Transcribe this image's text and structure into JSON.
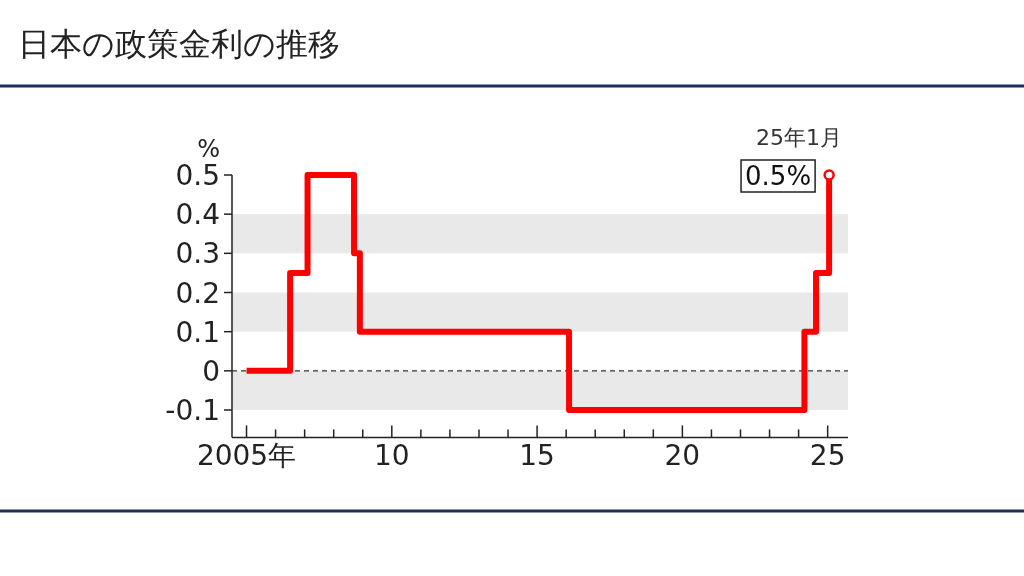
{
  "chart_data": {
    "type": "step",
    "title": "日本の政策金利の推移",
    "ylabel": "%",
    "x": [
      2005.0,
      2006.5,
      2007.1,
      2008.7,
      2008.9,
      2016.1,
      2024.2,
      2024.6,
      2025.05
    ],
    "values": [
      0,
      0.25,
      0.5,
      0.3,
      0.1,
      -0.1,
      0.1,
      0.25,
      0.5
    ],
    "color": "#ff0000",
    "xlim": [
      2004.5,
      2025.7
    ],
    "xticks": [
      {
        "value": 2005,
        "label": "2005年"
      },
      {
        "value": 2006,
        "label": null
      },
      {
        "value": 2007,
        "label": null
      },
      {
        "value": 2008,
        "label": null
      },
      {
        "value": 2009,
        "label": null
      },
      {
        "value": 2010,
        "label": "10"
      },
      {
        "value": 2011,
        "label": null
      },
      {
        "value": 2012,
        "label": null
      },
      {
        "value": 2013,
        "label": null
      },
      {
        "value": 2014,
        "label": null
      },
      {
        "value": 2015,
        "label": "15"
      },
      {
        "value": 2016,
        "label": null
      },
      {
        "value": 2017,
        "label": null
      },
      {
        "value": 2018,
        "label": null
      },
      {
        "value": 2019,
        "label": null
      },
      {
        "value": 2020,
        "label": "20"
      },
      {
        "value": 2021,
        "label": null
      },
      {
        "value": 2022,
        "label": null
      },
      {
        "value": 2023,
        "label": null
      },
      {
        "value": 2024,
        "label": null
      },
      {
        "value": 2025,
        "label": "25"
      }
    ],
    "ylim": [
      -0.17,
      0.5
    ],
    "yticks": [
      -0.1,
      0,
      0.1,
      0.2,
      0.3,
      0.4,
      0.5
    ],
    "bands": [
      {
        "axis": "y",
        "from": 0.3,
        "to": 0.4,
        "color": "#e9e9e9"
      },
      {
        "axis": "y",
        "from": 0.1,
        "to": 0.2,
        "color": "#e9e9e9"
      },
      {
        "axis": "y",
        "from": -0.1,
        "to": 0,
        "color": "#e9e9e9"
      }
    ],
    "ref_lines": [
      {
        "axis": "y",
        "value": 0,
        "color": "#333333",
        "line_style": "dashed"
      }
    ],
    "annotations": [
      {
        "text": "25年1月",
        "x": 2025.05,
        "y": 0.5
      },
      {
        "text": "0.5%",
        "x": 2025.05,
        "y": 0.5
      }
    ]
  }
}
